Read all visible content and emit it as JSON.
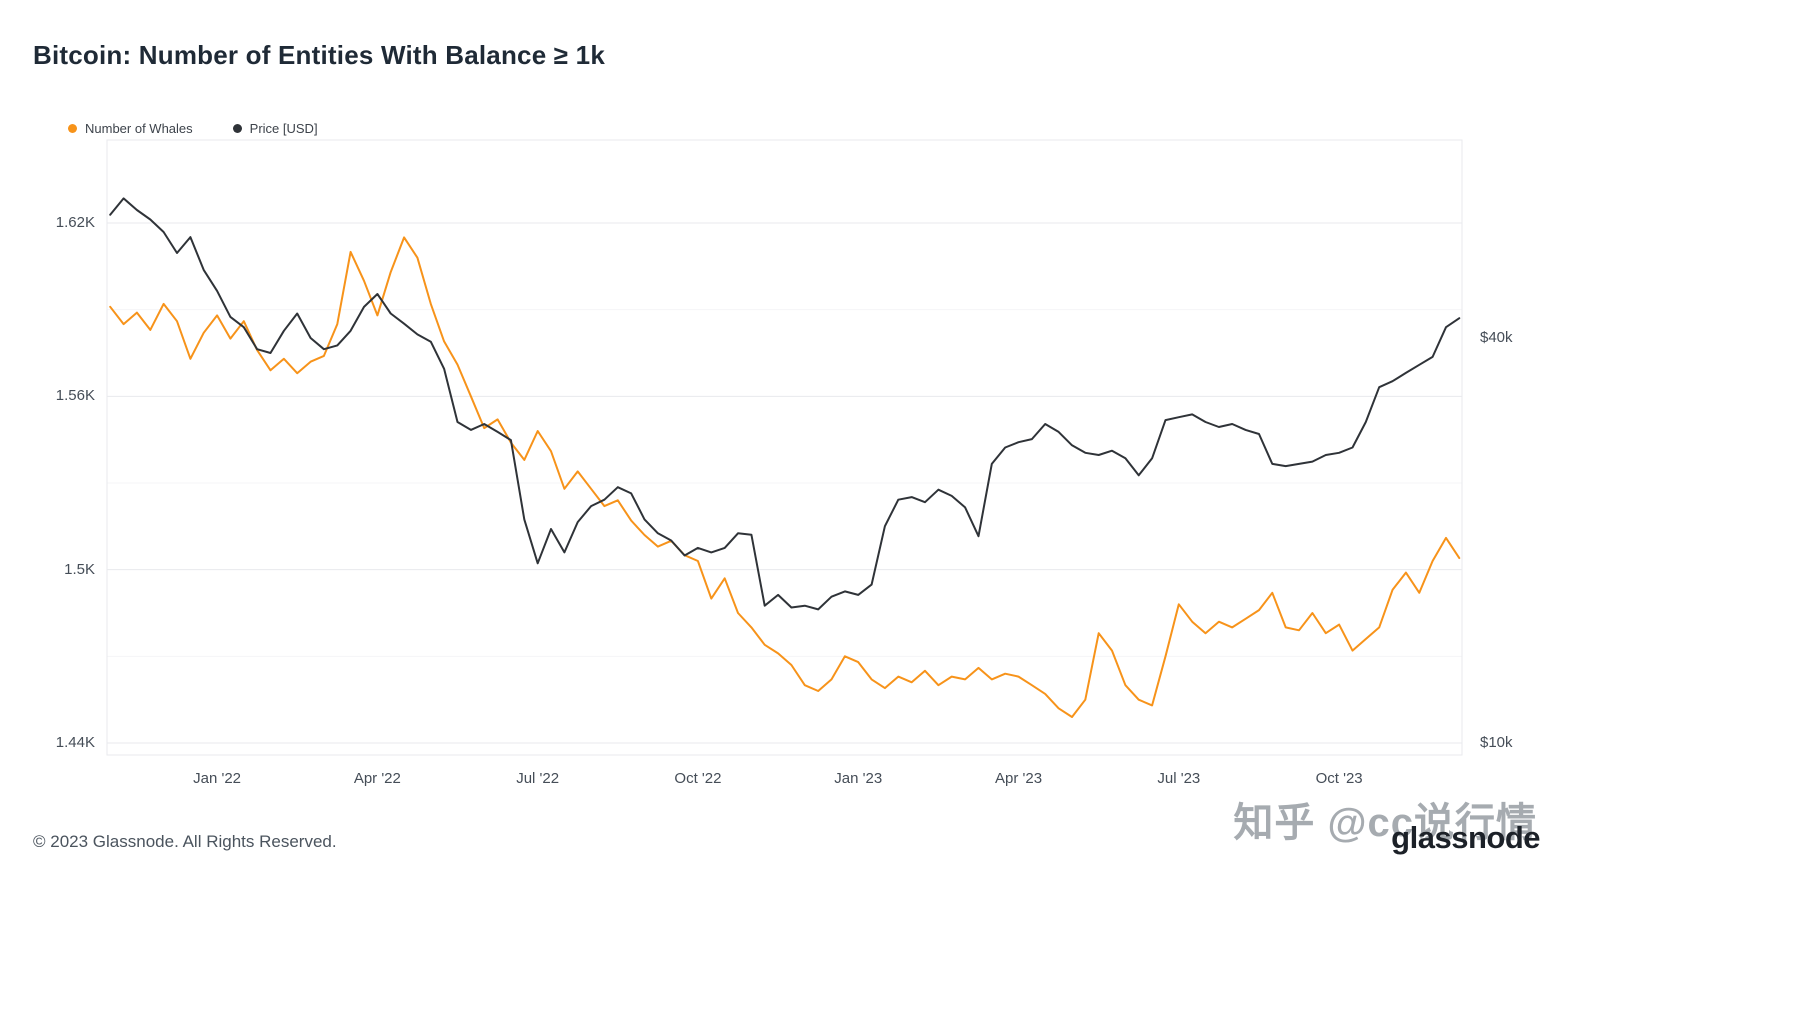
{
  "page": {
    "title": "Bitcoin: Number of Entities With Balance ≥ 1k",
    "footer": "© 2023 Glassnode. All Rights Reserved.",
    "watermark": "知乎 @cc说行情",
    "brand": "glassnode"
  },
  "legend": [
    {
      "label": "Number of Whales",
      "color": "#F7931A"
    },
    {
      "label": "Price [USD]",
      "color": "#2F3338"
    }
  ],
  "chart_data": {
    "type": "line",
    "title": "Bitcoin: Number of Entities With Balance ≥ 1k",
    "x_unit": "months relative to Jan 1 2022 (0 = Jan '22)",
    "x_range_note": "approx late Oct 2021 through mid Dec 2023",
    "grid": "horizontal only",
    "legend_position": "top-left",
    "x": [
      -2,
      -1.75,
      -1.5,
      -1.25,
      -1,
      -0.75,
      -0.5,
      -0.25,
      0,
      0.25,
      0.5,
      0.75,
      1,
      1.25,
      1.5,
      1.75,
      2,
      2.25,
      2.5,
      2.75,
      3,
      3.25,
      3.5,
      3.75,
      4,
      4.25,
      4.5,
      4.75,
      5,
      5.25,
      5.5,
      5.75,
      6,
      6.25,
      6.5,
      6.75,
      7,
      7.25,
      7.5,
      7.75,
      8,
      8.25,
      8.5,
      8.75,
      9,
      9.25,
      9.5,
      9.75,
      10,
      10.25,
      10.5,
      10.75,
      11,
      11.25,
      11.5,
      11.75,
      12,
      12.25,
      12.5,
      12.75,
      13,
      13.25,
      13.5,
      13.75,
      14,
      14.25,
      14.5,
      14.75,
      15,
      15.25,
      15.5,
      15.75,
      16,
      16.25,
      16.5,
      16.75,
      17,
      17.25,
      17.5,
      17.75,
      18,
      18.25,
      18.5,
      18.75,
      19,
      19.25,
      19.5,
      19.75,
      20,
      20.25,
      20.5,
      20.75,
      21,
      21.25,
      21.5,
      21.75,
      22,
      22.25,
      22.5,
      22.75,
      23,
      23.25
    ],
    "series": [
      {
        "name": "Number of Whales",
        "color": "#F7931A",
        "axis": "left",
        "unit": "K entities (balance ≥ 1k BTC)",
        "values": [
          1.591,
          1.585,
          1.589,
          1.583,
          1.592,
          1.586,
          1.573,
          1.582,
          1.588,
          1.58,
          1.586,
          1.576,
          1.569,
          1.573,
          1.568,
          1.572,
          1.574,
          1.585,
          1.61,
          1.6,
          1.588,
          1.603,
          1.615,
          1.608,
          1.592,
          1.579,
          1.571,
          1.56,
          1.549,
          1.552,
          1.544,
          1.538,
          1.548,
          1.541,
          1.528,
          1.534,
          1.528,
          1.522,
          1.524,
          1.517,
          1.512,
          1.508,
          1.51,
          1.505,
          1.503,
          1.49,
          1.497,
          1.485,
          1.48,
          1.474,
          1.471,
          1.467,
          1.46,
          1.458,
          1.462,
          1.47,
          1.468,
          1.462,
          1.459,
          1.463,
          1.461,
          1.465,
          1.46,
          1.463,
          1.462,
          1.466,
          1.462,
          1.464,
          1.463,
          1.46,
          1.457,
          1.452,
          1.449,
          1.455,
          1.478,
          1.472,
          1.46,
          1.455,
          1.453,
          1.47,
          1.488,
          1.482,
          1.478,
          1.482,
          1.48,
          1.483,
          1.486,
          1.492,
          1.48,
          1.479,
          1.485,
          1.478,
          1.481,
          1.472,
          1.476,
          1.48,
          1.493,
          1.499,
          1.492,
          1.503,
          1.511,
          1.504
        ]
      },
      {
        "name": "Price [USD]",
        "color": "#2F3338",
        "axis": "right",
        "unit": "USD thousands",
        "values": [
          61.0,
          64.5,
          62.0,
          60.0,
          57.5,
          53.5,
          56.5,
          50.5,
          47.0,
          43.0,
          41.5,
          38.5,
          38.0,
          41.0,
          43.5,
          40.0,
          38.5,
          39.0,
          41.0,
          44.5,
          46.5,
          43.5,
          42.0,
          40.5,
          39.5,
          36.0,
          30.0,
          29.2,
          29.8,
          29.0,
          28.2,
          21.5,
          18.5,
          20.8,
          19.2,
          21.3,
          22.5,
          23.0,
          24.0,
          23.5,
          21.5,
          20.5,
          20.0,
          19.0,
          19.5,
          19.2,
          19.5,
          20.5,
          20.4,
          16.0,
          16.6,
          15.9,
          16.0,
          15.8,
          16.5,
          16.8,
          16.6,
          17.2,
          21.0,
          23.0,
          23.2,
          22.8,
          23.8,
          23.3,
          22.4,
          20.3,
          26.0,
          27.5,
          28.0,
          28.3,
          29.8,
          29.0,
          27.7,
          27.0,
          26.8,
          27.2,
          26.5,
          25.0,
          26.5,
          30.2,
          30.5,
          30.8,
          30.0,
          29.5,
          29.8,
          29.2,
          28.8,
          26.0,
          25.8,
          26.0,
          26.2,
          26.8,
          27.0,
          27.5,
          30.0,
          33.8,
          34.5,
          35.5,
          36.5,
          37.5,
          41.5,
          42.8
        ]
      }
    ],
    "left_axis": {
      "scale": "linear",
      "domain": [
        1.436,
        1.648
      ],
      "ticks": [
        {
          "label": "1.62K",
          "value": 1.62
        },
        {
          "label": "1.56K",
          "value": 1.56
        },
        {
          "label": "1.5K",
          "value": 1.5
        },
        {
          "label": "1.44K",
          "value": 1.44
        }
      ],
      "minor_gridlines": [
        1.47,
        1.53,
        1.59
      ]
    },
    "right_axis": {
      "scale": "log",
      "domain": [
        10,
        46
      ],
      "ticks": [
        {
          "label": "$40k",
          "value": 40
        },
        {
          "label": "$10k",
          "value": 10
        }
      ]
    },
    "x_ticks": [
      {
        "label": "Jan '22",
        "t": 0
      },
      {
        "label": "Apr '22",
        "t": 3
      },
      {
        "label": "Jul '22",
        "t": 6
      },
      {
        "label": "Oct '22",
        "t": 9
      },
      {
        "label": "Jan '23",
        "t": 12
      },
      {
        "label": "Apr '23",
        "t": 15
      },
      {
        "label": "Jul '23",
        "t": 18
      },
      {
        "label": "Oct '23",
        "t": 21
      }
    ],
    "colors": {
      "gridline_major": "#e8eaed",
      "gridline_minor": "#f4f5f7",
      "plot_border": "#e8eaed",
      "axis_text": "#454d57"
    }
  }
}
